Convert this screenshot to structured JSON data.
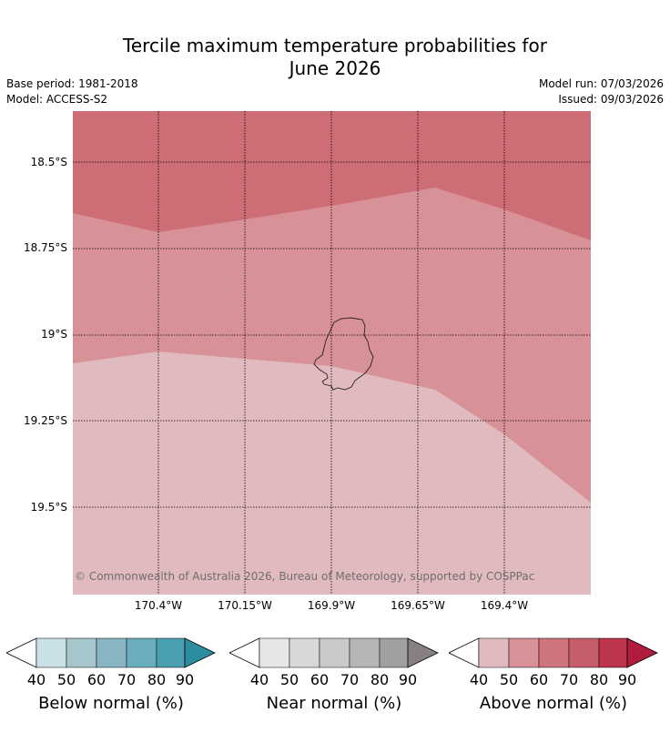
{
  "title_line1": "Tercile maximum temperature probabilities for",
  "title_line2": "June 2026",
  "base_period": "Base period: 1981-2018",
  "model": "Model: ACCESS-S2",
  "model_run": "Model run: 07/03/2026",
  "issued": "Issued: 09/03/2026",
  "copyright": "© Commonwealth of Australia 2026, Bureau of Meteorology, supported by COSPPac",
  "map": {
    "region": "Niue",
    "lat_labels": [
      "18.5°S",
      "18.75°S",
      "19°S",
      "19.25°S",
      "19.5°S"
    ],
    "lon_labels": [
      "170.4°W",
      "170.15°W",
      "169.9°W",
      "169.65°W",
      "169.4°W"
    ],
    "zones": [
      {
        "category": "Above normal",
        "range": "60-70",
        "color": "#cd6d76"
      },
      {
        "category": "Above normal",
        "range": "50-60",
        "color": "#d79197"
      },
      {
        "category": "Above normal",
        "range": "40-50",
        "color": "#e1babf"
      }
    ]
  },
  "legends": [
    {
      "title": "Below normal (%)",
      "ticks": [
        "40",
        "50",
        "60",
        "70",
        "80",
        "90"
      ],
      "colors": [
        "#c8e0e6",
        "#a6c6cc",
        "#88b6c2",
        "#6aaebd",
        "#4a9fb0",
        "#2b8d9d"
      ]
    },
    {
      "title": "Near normal (%)",
      "ticks": [
        "40",
        "50",
        "60",
        "70",
        "80",
        "90"
      ],
      "colors": [
        "#e6e6e6",
        "#d8d8d8",
        "#c9c9c9",
        "#b5b5b5",
        "#a0a0a0",
        "#888080"
      ]
    },
    {
      "title": "Above normal (%)",
      "ticks": [
        "40",
        "50",
        "60",
        "70",
        "80",
        "90"
      ],
      "colors": [
        "#e1babf",
        "#d79197",
        "#cd747c",
        "#c55d6a",
        "#bd344d",
        "#b01c3c"
      ]
    }
  ]
}
